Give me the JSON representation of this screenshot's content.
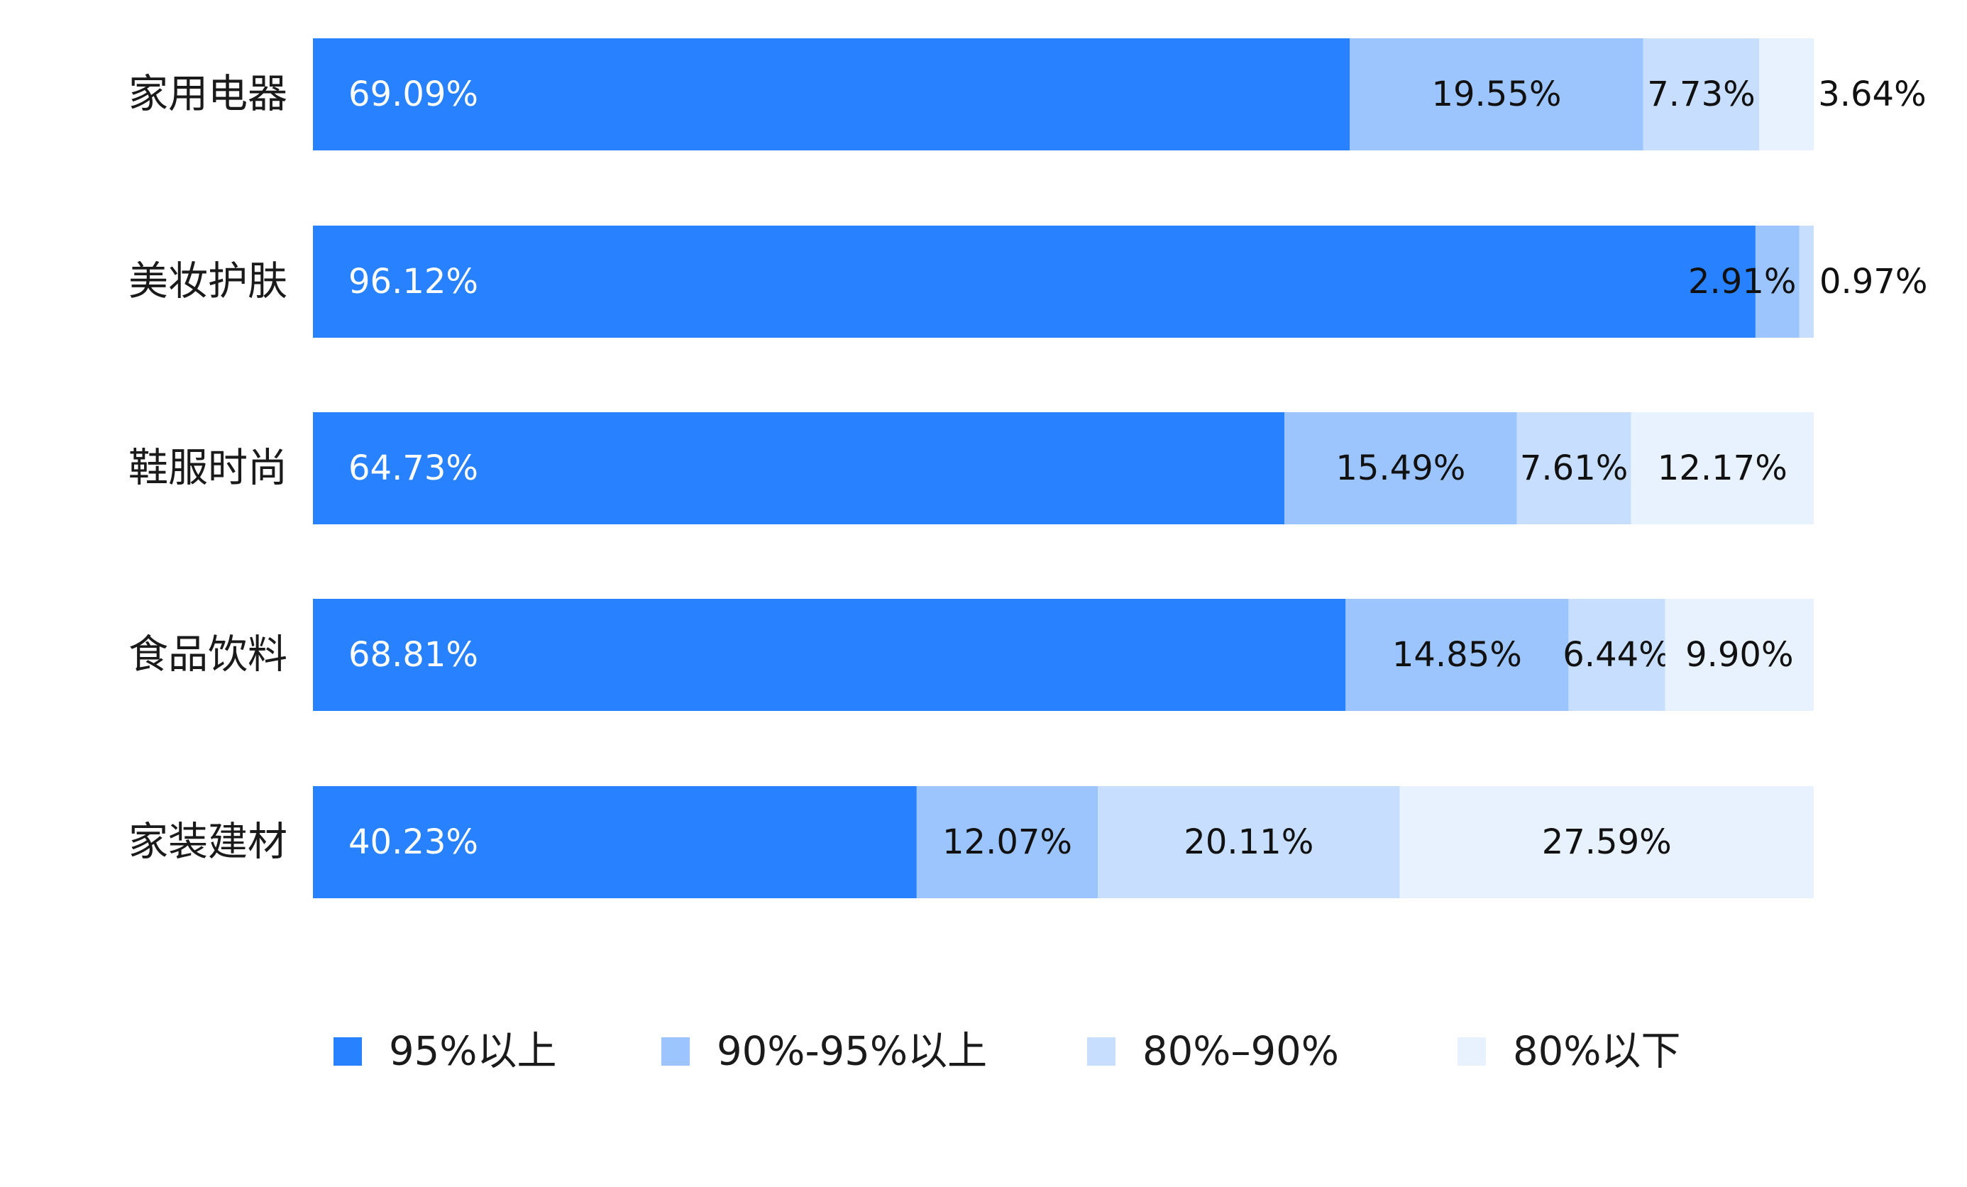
{
  "chart_data": {
    "type": "bar",
    "orientation": "horizontal",
    "stacked": true,
    "percent_stacked": true,
    "categories": [
      "家用电器",
      "美妆护肤",
      "鞋服时尚",
      "食品饮料",
      "家装建材"
    ],
    "series": [
      {
        "name": "95%以上",
        "color": "#2882FF",
        "values": [
          69.09,
          96.12,
          64.73,
          68.81,
          40.23
        ],
        "labels": [
          "69.09%",
          "96.12%",
          "64.73%",
          "68.81%",
          "40.23%"
        ]
      },
      {
        "name": "90%-95%以上",
        "color": "#9DC5FD",
        "values": [
          19.55,
          2.91,
          15.49,
          14.85,
          12.07
        ],
        "labels": [
          "19.55%",
          "2.91%",
          "15.49%",
          "14.85%",
          "12.07%"
        ]
      },
      {
        "name": "80%–90%",
        "color": "#C7DEFE",
        "values": [
          7.73,
          0.97,
          7.61,
          6.44,
          20.11
        ],
        "labels": [
          "7.73%",
          "0.97%",
          "7.61%",
          "6.44%",
          "20.11%"
        ]
      },
      {
        "name": "80%以下",
        "color": "#E8F1FE",
        "values": [
          3.64,
          0.0,
          12.17,
          9.9,
          27.59
        ],
        "labels": [
          "3.64%",
          "",
          "12.17%",
          "9.90%",
          "27.59%"
        ]
      }
    ],
    "label_colors": [
      "#ffffff",
      "#111111",
      "#111111",
      "#111111"
    ],
    "legend_position": "bottom",
    "grid": false,
    "xlim": [
      0,
      100
    ]
  }
}
